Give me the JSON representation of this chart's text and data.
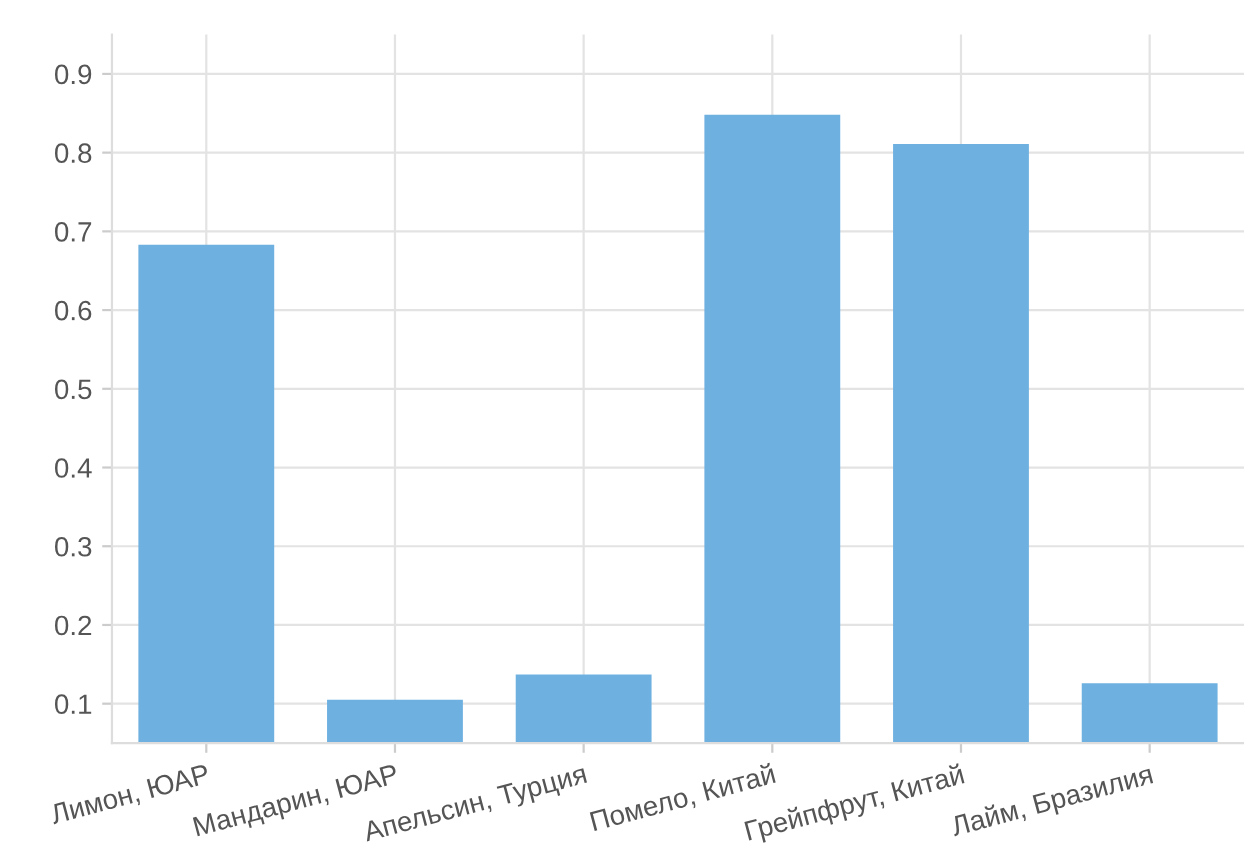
{
  "chart_data": {
    "type": "bar",
    "categories": [
      "Лимон, ЮАР",
      "Мандарин, ЮАР",
      "Апельсин, Турция",
      "Помело, Китай",
      "Грейпфрут, Китай",
      "Лайм, Бразилия"
    ],
    "values": [
      0.683,
      0.105,
      0.137,
      0.848,
      0.811,
      0.126
    ],
    "color": "#6eb1e1",
    "ylim": [
      0.05,
      0.95
    ],
    "yticks": [
      0.1,
      0.2,
      0.3,
      0.4,
      0.5,
      0.6,
      0.7,
      0.8,
      0.9
    ],
    "grid": true
  }
}
